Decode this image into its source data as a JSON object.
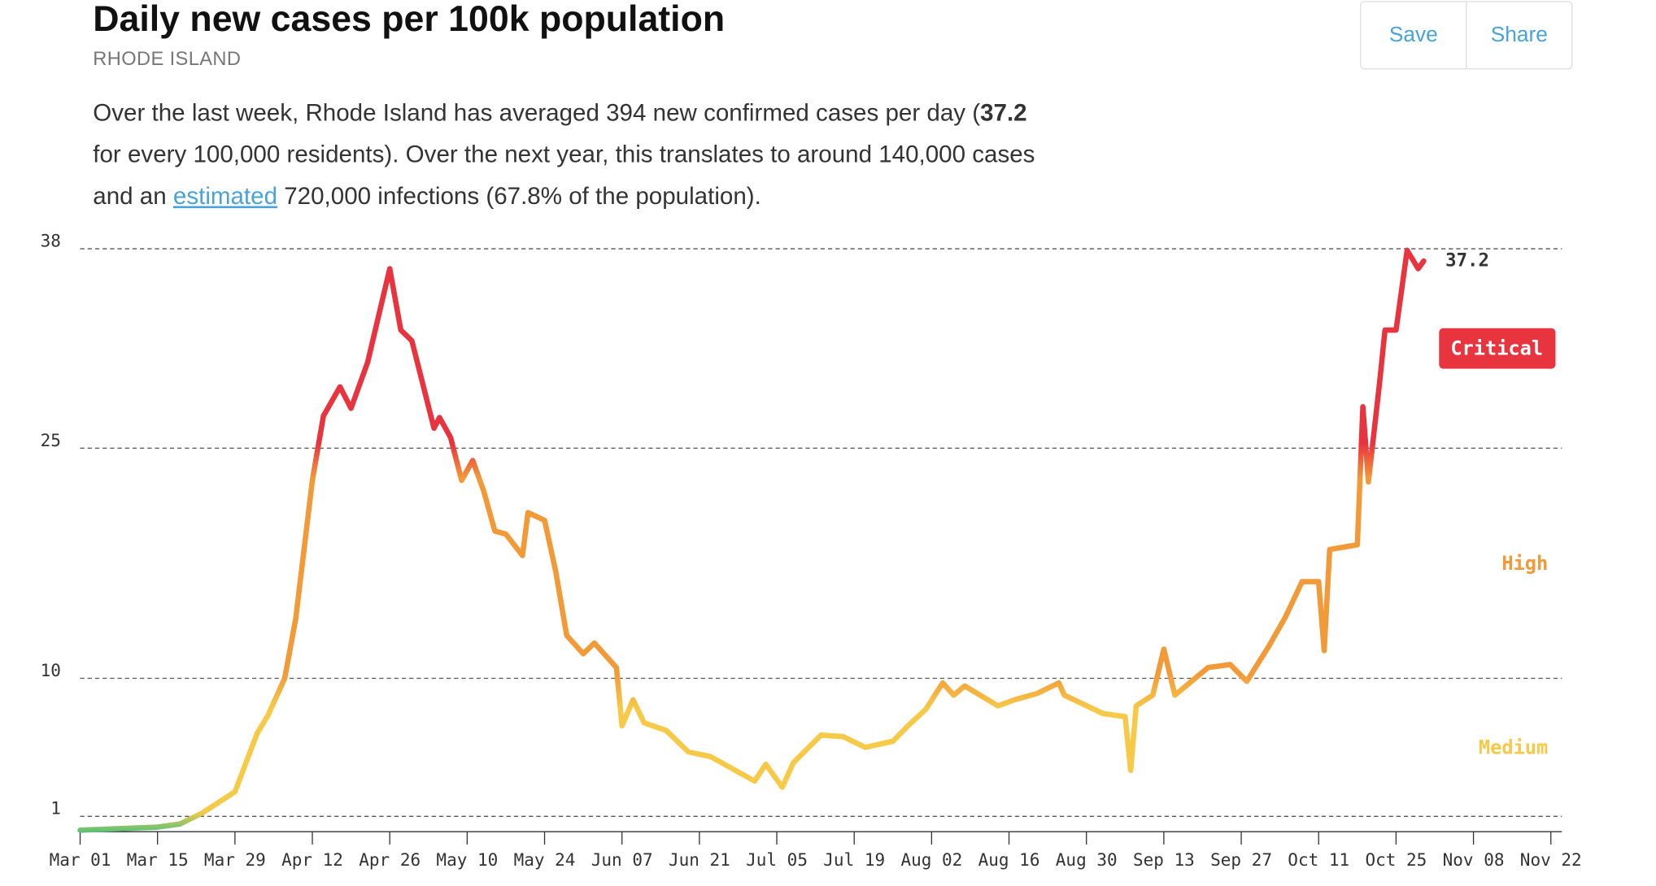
{
  "header": {
    "title": "Daily new cases per 100k population",
    "subtitle": "RHODE ISLAND",
    "buttons": [
      "Save",
      "Share"
    ],
    "description": {
      "part1": "Over the last week, Rhode Island has averaged 394 new confirmed cases per day (",
      "bold": "37.2",
      "part2": " for every 100,000 residents). Over the next year, this translates to around 140,000 cases and an ",
      "link": "estimated",
      "part3": " 720,000 infections (67.8% of the population)."
    }
  },
  "chart_data": {
    "type": "line",
    "x": [
      "Mar 01",
      "Mar 15",
      "Mar 19",
      "Mar 23",
      "Mar 26",
      "Mar 29",
      "Mar 31",
      "Apr 02",
      "Apr 04",
      "Apr 07",
      "Apr 09",
      "Apr 12",
      "Apr 14",
      "Apr 17",
      "Apr 19",
      "Apr 22",
      "Apr 26",
      "Apr 28",
      "Apr 30",
      "May 04",
      "May 05",
      "May 07",
      "May 09",
      "May 11",
      "May 13",
      "May 15",
      "May 17",
      "May 20",
      "May 21",
      "May 24",
      "May 26",
      "May 28",
      "May 31",
      "Jun 02",
      "Jun 06",
      "Jun 07",
      "Jun 09",
      "Jun 11",
      "Jun 15",
      "Jun 19",
      "Jun 23",
      "Jun 26",
      "Jul 01",
      "Jul 03",
      "Jul 06",
      "Jul 08",
      "Jul 13",
      "Jul 17",
      "Jul 21",
      "Jul 26",
      "Jul 29",
      "Aug 01",
      "Aug 04",
      "Aug 06",
      "Aug 08",
      "Aug 14",
      "Aug 17",
      "Aug 21",
      "Aug 25",
      "Aug 26",
      "Sep 02",
      "Sep 06",
      "Sep 07",
      "Sep 08",
      "Sep 11",
      "Sep 13",
      "Sep 15",
      "Sep 17",
      "Sep 21",
      "Sep 25",
      "Sep 28",
      "Oct 02",
      "Oct 05",
      "Oct 08",
      "Oct 11",
      "Oct 12",
      "Oct 13",
      "Oct 18",
      "Oct 19",
      "Oct 20",
      "Oct 22",
      "Oct 23",
      "Oct 25",
      "Oct 27",
      "Oct 29",
      "Oct 30"
    ],
    "series": [
      {
        "name": "Daily new cases per 100k",
        "values": [
          0.1,
          0.3,
          0.5,
          1.2,
          1.9,
          2.6,
          4.5,
          6.4,
          7.6,
          10,
          13.9,
          22.9,
          27.1,
          29,
          27.6,
          30.6,
          36.7,
          32.7,
          32,
          26.3,
          27,
          25.7,
          22.9,
          24.2,
          22.2,
          19.6,
          19.4,
          18,
          20.8,
          20.3,
          17,
          12.8,
          11.6,
          12.3,
          10.7,
          6.9,
          8.6,
          7.1,
          6.6,
          5.2,
          4.9,
          4.3,
          3.3,
          4.4,
          2.9,
          4.5,
          6.3,
          6.2,
          5.5,
          5.9,
          7,
          8,
          9.7,
          8.9,
          9.5,
          8.2,
          8.6,
          9,
          9.7,
          8.9,
          7.7,
          7.5,
          4,
          8.2,
          8.9,
          11.9,
          8.9,
          9.5,
          10.7,
          10.9,
          9.8,
          12.1,
          14,
          16.3,
          16.3,
          11.8,
          18.4,
          18.7,
          27.7,
          22.8,
          29.2,
          32.7,
          32.7,
          37.9,
          36.7,
          37.2
        ]
      }
    ],
    "xlim": [
      "Mar 01",
      "Nov 24"
    ],
    "xticks": [
      "Mar 01",
      "Mar 15",
      "Mar 29",
      "Apr 12",
      "Apr 26",
      "May 10",
      "May 24",
      "Jun 07",
      "Jun 21",
      "Jul 05",
      "Jul 19",
      "Aug 02",
      "Aug 16",
      "Aug 30",
      "Sep 13",
      "Sep 27",
      "Oct 11",
      "Oct 25",
      "Nov 08",
      "Nov 22"
    ],
    "ylim": [
      0,
      38
    ],
    "yticks": [
      1,
      10,
      25,
      38
    ],
    "grid": true,
    "base_color": "#5cc27a",
    "zones": [
      {
        "label": "Medium",
        "min": 1,
        "color": "#f7c948"
      },
      {
        "label": "High",
        "min": 10,
        "color": "#f39a38"
      },
      {
        "label": "Critical",
        "min": 25,
        "color": "#e8343f"
      }
    ]
  }
}
